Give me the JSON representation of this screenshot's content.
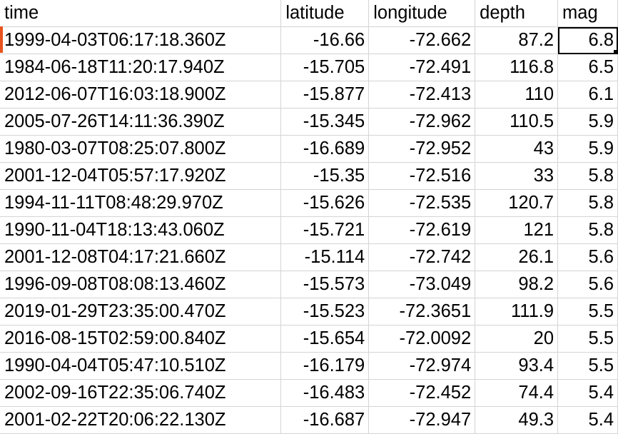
{
  "colors": {
    "gridline": "#d4d4d4",
    "active_cell_border": "#000000",
    "row_marker": "#e8541e"
  },
  "spreadsheet": {
    "columns": [
      "time",
      "latitude",
      "longitude",
      "depth",
      "mag"
    ],
    "active_cell": {
      "row": 0,
      "column": "mag"
    },
    "rows": [
      {
        "time": "1999-04-03T06:17:18.360Z",
        "latitude": "-16.66",
        "longitude": "-72.662",
        "depth": "87.2",
        "mag": "6.8"
      },
      {
        "time": "1984-06-18T11:20:17.940Z",
        "latitude": "-15.705",
        "longitude": "-72.491",
        "depth": "116.8",
        "mag": "6.5"
      },
      {
        "time": "2012-06-07T16:03:18.900Z",
        "latitude": "-15.877",
        "longitude": "-72.413",
        "depth": "110",
        "mag": "6.1"
      },
      {
        "time": "2005-07-26T14:11:36.390Z",
        "latitude": "-15.345",
        "longitude": "-72.962",
        "depth": "110.5",
        "mag": "5.9"
      },
      {
        "time": "1980-03-07T08:25:07.800Z",
        "latitude": "-16.689",
        "longitude": "-72.952",
        "depth": "43",
        "mag": "5.9"
      },
      {
        "time": "2001-12-04T05:57:17.920Z",
        "latitude": "-15.35",
        "longitude": "-72.516",
        "depth": "33",
        "mag": "5.8"
      },
      {
        "time": "1994-11-11T08:48:29.970Z",
        "latitude": "-15.626",
        "longitude": "-72.535",
        "depth": "120.7",
        "mag": "5.8"
      },
      {
        "time": "1990-11-04T18:13:43.060Z",
        "latitude": "-15.721",
        "longitude": "-72.619",
        "depth": "121",
        "mag": "5.8"
      },
      {
        "time": "2001-12-08T04:17:21.660Z",
        "latitude": "-15.114",
        "longitude": "-72.742",
        "depth": "26.1",
        "mag": "5.6"
      },
      {
        "time": "1996-09-08T08:08:13.460Z",
        "latitude": "-15.573",
        "longitude": "-73.049",
        "depth": "98.2",
        "mag": "5.6"
      },
      {
        "time": "2019-01-29T23:35:00.470Z",
        "latitude": "-15.523",
        "longitude": "-72.3651",
        "depth": "111.9",
        "mag": "5.5"
      },
      {
        "time": "2016-08-15T02:59:00.840Z",
        "latitude": "-15.654",
        "longitude": "-72.0092",
        "depth": "20",
        "mag": "5.5"
      },
      {
        "time": "1990-04-04T05:47:10.510Z",
        "latitude": "-16.179",
        "longitude": "-72.974",
        "depth": "93.4",
        "mag": "5.5"
      },
      {
        "time": "2002-09-16T22:35:06.740Z",
        "latitude": "-16.483",
        "longitude": "-72.452",
        "depth": "74.4",
        "mag": "5.4"
      },
      {
        "time": "2001-02-22T20:06:22.130Z",
        "latitude": "-16.687",
        "longitude": "-72.947",
        "depth": "49.3",
        "mag": "5.4"
      }
    ]
  }
}
